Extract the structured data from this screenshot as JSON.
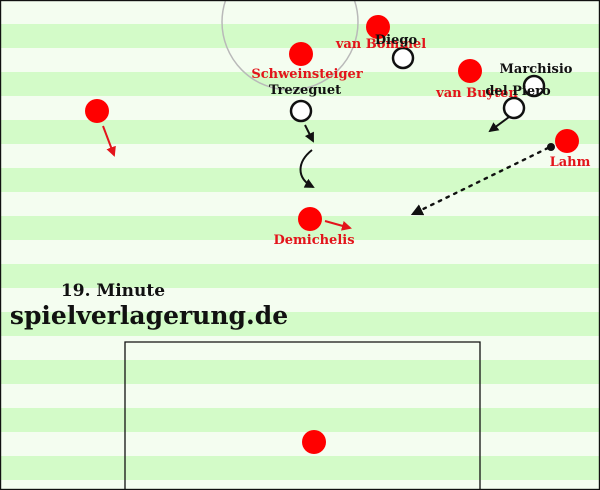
{
  "colors": {
    "stripe_light": "#f4fdf0",
    "stripe_dark": "#d3fbc8",
    "red_team": "#ff0000",
    "red_label": "#e3141b",
    "black": "#111111",
    "white": "#ffffff"
  },
  "caption": {
    "minute": "19. Minute",
    "site": "spielverlagerung.de"
  },
  "players": {
    "red": [
      {
        "key": "van-bommel",
        "label": "van Bommel"
      },
      {
        "key": "schweinsteiger",
        "label": "Schweinsteiger"
      },
      {
        "key": "van-buyten",
        "label": "van Buyten"
      },
      {
        "key": "lahm",
        "label": "Lahm"
      },
      {
        "key": "demichelis",
        "label": "Demichelis"
      },
      {
        "key": "left-winger",
        "label": ""
      },
      {
        "key": "goalkeeper",
        "label": ""
      }
    ],
    "white": [
      {
        "key": "diego",
        "label": "Diego"
      },
      {
        "key": "trezeguet",
        "label": "Trezeguet"
      },
      {
        "key": "marchisio",
        "label": "Marchisio"
      },
      {
        "key": "del-piero",
        "label": "del Piero"
      }
    ]
  }
}
